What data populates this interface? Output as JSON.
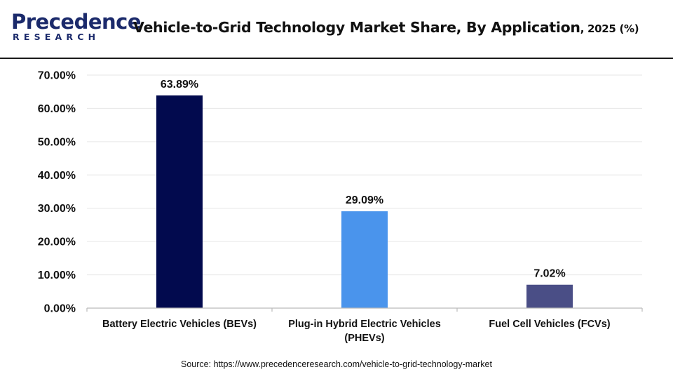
{
  "header": {
    "logo_word": "Precedence",
    "logo_sub": "RESEARCH",
    "title_main": "Vehicle-to-Grid Technology Market Share, By Application",
    "title_suffix": ", 2025 (%)"
  },
  "footer": {
    "source": "Source: https://www.precedenceresearch.com/vehicle-to-grid-technology-market"
  },
  "colors": {
    "bar_1": "#020a4e",
    "bar_2": "#4a94ec",
    "bar_3": "#4a4e86",
    "grid": "#e6e6e6",
    "axis": "#bbbbbb"
  },
  "chart_data": {
    "type": "bar",
    "title": "Vehicle-to-Grid Technology Market Share, By Application, 2025 (%)",
    "xlabel": "",
    "ylabel": "",
    "ylim": [
      0,
      70
    ],
    "yticks": [
      0,
      10,
      20,
      30,
      40,
      50,
      60,
      70
    ],
    "ytick_labels": [
      "0.00%",
      "10.00%",
      "20.00%",
      "30.00%",
      "40.00%",
      "50.00%",
      "60.00%",
      "70.00%"
    ],
    "grid": true,
    "categories": [
      [
        "Battery Electric Vehicles (BEVs)"
      ],
      [
        "Plug-in Hybrid Electric Vehicles",
        "(PHEVs)"
      ],
      [
        "Fuel Cell Vehicles (FCVs)"
      ]
    ],
    "values": [
      63.89,
      29.09,
      7.02
    ],
    "data_labels": [
      "63.89%",
      "29.09%",
      "7.02%"
    ]
  }
}
